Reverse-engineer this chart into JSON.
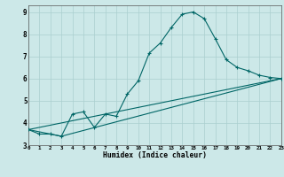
{
  "xlabel": "Humidex (Indice chaleur)",
  "background_color": "#cce8e8",
  "grid_color": "#aacfcf",
  "line_color": "#006666",
  "x_values": [
    0,
    1,
    2,
    3,
    4,
    5,
    6,
    7,
    8,
    9,
    10,
    11,
    12,
    13,
    14,
    15,
    16,
    17,
    18,
    19,
    20,
    21,
    22,
    23
  ],
  "series1": [
    3.7,
    3.5,
    3.5,
    3.4,
    4.4,
    4.5,
    3.8,
    4.4,
    4.3,
    5.3,
    5.9,
    7.15,
    7.6,
    8.3,
    8.9,
    9.0,
    8.7,
    7.8,
    6.85,
    6.5,
    6.35,
    6.15,
    6.05,
    6.0
  ],
  "line2_x": [
    0,
    23
  ],
  "line2_y": [
    3.7,
    6.0
  ],
  "line3_x": [
    0,
    3,
    23
  ],
  "line3_y": [
    3.7,
    3.4,
    6.0
  ],
  "xlim": [
    0,
    23
  ],
  "ylim": [
    3.0,
    9.3
  ],
  "yticks": [
    3,
    4,
    5,
    6,
    7,
    8,
    9
  ],
  "xticks": [
    0,
    1,
    2,
    3,
    4,
    5,
    6,
    7,
    8,
    9,
    10,
    11,
    12,
    13,
    14,
    15,
    16,
    17,
    18,
    19,
    20,
    21,
    22,
    23
  ]
}
